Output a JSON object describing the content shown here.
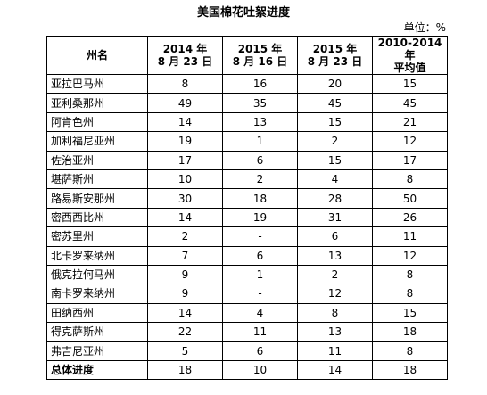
{
  "title": "美国棉花吐絮进度",
  "unit": "单位：%",
  "table": {
    "header": [
      [
        "州名"
      ],
      [
        "2014 年",
        "8 月 23 日"
      ],
      [
        "2015 年",
        "8 月 16 日"
      ],
      [
        "2015 年",
        "8 月 23 日"
      ],
      [
        "2010-2014 年",
        "平均值"
      ]
    ],
    "rows": [
      [
        "亚拉巴马州",
        8,
        16,
        20,
        15
      ],
      [
        "亚利桑那州",
        49,
        35,
        45,
        45
      ],
      [
        "阿肯色州",
        14,
        13,
        15,
        21
      ],
      [
        "加利福尼亚州",
        19,
        1,
        2,
        12
      ],
      [
        "佐治亚州",
        17,
        6,
        15,
        17
      ],
      [
        "堪萨斯州",
        10,
        2,
        4,
        8
      ],
      [
        "路易斯安那州",
        30,
        18,
        28,
        50
      ],
      [
        "密西西比州",
        14,
        19,
        31,
        26
      ],
      [
        "密苏里州",
        2,
        "-",
        6,
        11
      ],
      [
        "北卡罗来纳州",
        7,
        6,
        13,
        12
      ],
      [
        "俄克拉何马州",
        9,
        1,
        2,
        8
      ],
      [
        "南卡罗来纳州",
        9,
        "-",
        12,
        8
      ],
      [
        "田纳西州",
        14,
        4,
        8,
        15
      ],
      [
        "得克萨斯州",
        22,
        11,
        13,
        18
      ],
      [
        "弗吉尼亚州",
        5,
        6,
        11,
        8
      ],
      [
        "总体进度",
        18,
        10,
        14,
        18
      ]
    ]
  }
}
